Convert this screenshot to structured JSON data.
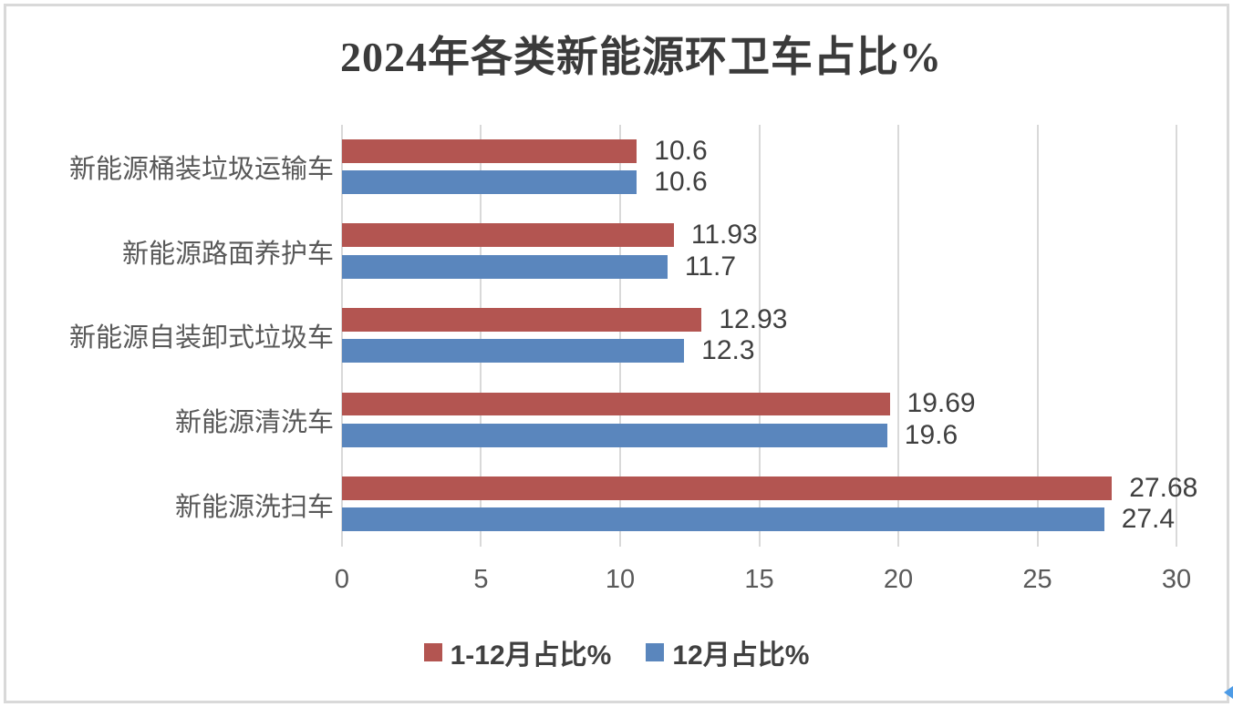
{
  "chart_data": {
    "type": "bar",
    "orientation": "horizontal",
    "title": "2024年各类新能源环卫车占比%",
    "categories": [
      "新能源桶装垃圾运输车",
      "新能源路面养护车",
      "新能源自装卸式垃圾车",
      "新能源清洗车",
      "新能源洗扫车"
    ],
    "series": [
      {
        "name": "1-12月占比%",
        "color": "#b35551",
        "values": [
          10.6,
          11.93,
          12.93,
          19.69,
          27.68
        ]
      },
      {
        "name": "12月占比%",
        "color": "#5a86bd",
        "values": [
          10.6,
          11.7,
          12.3,
          19.6,
          27.4
        ]
      }
    ],
    "xlim": [
      0,
      30
    ],
    "x_ticks": [
      "0",
      "5",
      "10",
      "15",
      "20",
      "25",
      "30"
    ],
    "grid": true,
    "legend_position": "bottom",
    "value_labels": true,
    "gridline_color": "#d9d9d9",
    "label_color": "#595959",
    "value_label_color": "#3f3f3f",
    "title_color": "#3b3b3b"
  }
}
